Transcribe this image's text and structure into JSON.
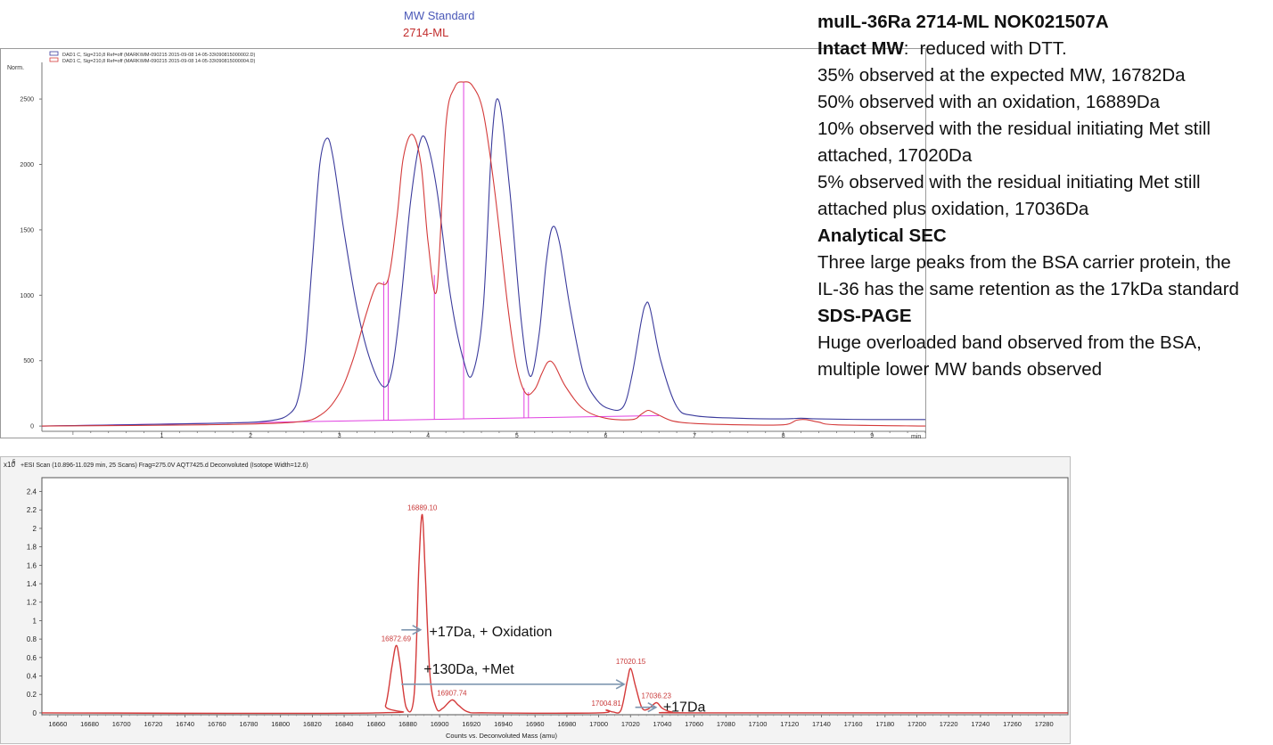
{
  "legend_top": {
    "blue_label": "MW Standard",
    "red_label": "2714-ML"
  },
  "notes": {
    "title": "muIL-36Ra 2714-ML NOK021507A",
    "intact_head": "Intact MW",
    "intact_sep": ":",
    "intact_tail": "reduced with DTT.",
    "lines1": [
      "35% observed at the expected MW, 16782Da",
      "50% observed with an oxidation, 16889Da",
      "10% observed with the residual initiating Met still attached, 17020Da",
      "5% observed with the residual initiating Met still attached plus oxidation, 17036Da"
    ],
    "sec_head": "Analytical SEC",
    "sec_text": "Three large peaks from the BSA carrier protein, the IL-36 has the same retention as the 17kDa standard",
    "sds_head": "SDS-PAGE",
    "sds_text": "Huge overloaded band observed from the BSA, multiple lower MW bands observed"
  },
  "chart_data": [
    {
      "type": "line",
      "ylabel": "Norm.",
      "xlabel": "min",
      "xlim": [
        -0.35,
        9.6
      ],
      "ylim": [
        -40,
        2780
      ],
      "yticks": [
        0,
        500,
        1000,
        1500,
        2000,
        2500
      ],
      "xticks": [
        1,
        2,
        3,
        4,
        5,
        6,
        7,
        8,
        9
      ],
      "header_lines": [
        "DAD1 C, Sig=210,8 Ref=off (MARK\\MM-090215 2015-09-08 14-05-33\\090815000002.D)",
        "DAD1 C, Sig=210,8 Ref=off (MARK\\MM-090215 2015-09-08 14-05-33\\090815000004.D)"
      ],
      "series": [
        {
          "name": "MW Standard",
          "color": "#3b3b9c",
          "x": [
            -0.35,
            1.5,
            2.2,
            2.45,
            2.55,
            2.62,
            2.7,
            2.78,
            2.86,
            2.93,
            3.05,
            3.2,
            3.35,
            3.5,
            3.6,
            3.7,
            3.8,
            3.9,
            3.98,
            4.1,
            4.25,
            4.4,
            4.5,
            4.62,
            4.72,
            4.8,
            4.92,
            5.05,
            5.15,
            5.25,
            5.33,
            5.4,
            5.48,
            5.6,
            5.75,
            5.9,
            6.05,
            6.2,
            6.3,
            6.4,
            6.45,
            6.5,
            6.62,
            6.8,
            7.0,
            7.5,
            8.0,
            8.2,
            8.4,
            9.0,
            9.6
          ],
          "y": [
            0,
            20,
            40,
            100,
            250,
            600,
            1300,
            2000,
            2200,
            2050,
            1500,
            900,
            500,
            300,
            450,
            1000,
            1700,
            2150,
            2180,
            1800,
            1000,
            500,
            400,
            900,
            2200,
            2480,
            1800,
            800,
            380,
            700,
            1250,
            1520,
            1400,
            900,
            400,
            200,
            130,
            150,
            400,
            800,
            930,
            900,
            500,
            150,
            80,
            60,
            55,
            60,
            55,
            50,
            50
          ]
        },
        {
          "name": "2714-ML",
          "color": "#d43a3a",
          "x": [
            -0.35,
            1.5,
            2.5,
            2.8,
            3.0,
            3.15,
            3.3,
            3.42,
            3.55,
            3.65,
            3.72,
            3.82,
            3.92,
            4.0,
            4.1,
            4.2,
            4.3,
            4.4,
            4.5,
            4.62,
            4.75,
            4.9,
            5.0,
            5.1,
            5.2,
            5.28,
            5.35,
            5.42,
            5.55,
            5.75,
            6.0,
            6.3,
            6.4,
            6.48,
            6.58,
            6.75,
            7.0,
            7.5,
            8.0,
            8.15,
            8.25,
            8.4,
            8.6,
            9.6
          ],
          "y": [
            0,
            10,
            30,
            90,
            250,
            500,
            850,
            1080,
            1120,
            1600,
            2050,
            2230,
            2000,
            1400,
            1050,
            2300,
            2590,
            2630,
            2600,
            2400,
            1800,
            900,
            450,
            250,
            280,
            400,
            490,
            470,
            300,
            130,
            60,
            50,
            90,
            120,
            90,
            40,
            20,
            10,
            10,
            45,
            50,
            30,
            10,
            0
          ]
        }
      ],
      "markers": {
        "color": "#e040e0",
        "drops": [
          3.5,
          3.55,
          4.07,
          4.4,
          5.08,
          5.13
        ],
        "baseline": [
          [
            -0.35,
            0
          ],
          [
            6.6,
            80
          ]
        ]
      }
    },
    {
      "type": "line",
      "title": "+ESI Scan (10.896-11.029 min, 25 Scans) Frag=275.0V AQT7425.d  Deconvoluted (Isotope Width=12.6)",
      "xlabel": "Counts vs. Deconvoluted Mass (amu)",
      "yscale_label": "x10",
      "yscale_exp": "5",
      "xlim": [
        16650,
        17295
      ],
      "ylim": [
        -0.02,
        2.55
      ],
      "yticks": [
        0,
        0.2,
        0.4,
        0.6,
        0.8,
        1,
        1.2,
        1.4,
        1.6,
        1.8,
        2,
        2.2,
        2.4
      ],
      "xticks": [
        16660,
        16680,
        16700,
        16720,
        16740,
        16760,
        16780,
        16800,
        16820,
        16840,
        16860,
        16880,
        16900,
        16920,
        16940,
        16960,
        16980,
        17000,
        17020,
        17040,
        17060,
        17080,
        17100,
        17120,
        17140,
        17160,
        17180,
        17200,
        17220,
        17240,
        17260,
        17280
      ],
      "series": [
        {
          "name": "",
          "color": "#d43a3a",
          "x": [
            16650,
            16860,
            16866,
            16870,
            16872.69,
            16875,
            16879,
            16884,
            16887,
            16889.1,
            16891,
            16894,
            16898,
            16902,
            16907.74,
            16912,
            16918,
            16930,
            17000,
            17004.81,
            17009,
            17014,
            17018,
            17020.15,
            17023,
            17027,
            17031,
            17036.23,
            17040,
            17046,
            17060,
            17295
          ],
          "y": [
            0,
            0,
            0.08,
            0.5,
            0.73,
            0.55,
            0.06,
            0.2,
            1.6,
            2.15,
            1.5,
            0.4,
            0.05,
            0.05,
            0.14,
            0.08,
            0.01,
            0,
            0,
            0.03,
            0.01,
            0.03,
            0.35,
            0.48,
            0.3,
            0.06,
            0.04,
            0.11,
            0.05,
            0.01,
            0,
            0
          ]
        }
      ],
      "peak_labels": [
        {
          "x": 16872.69,
          "y": 0.73,
          "text": "16872.69"
        },
        {
          "x": 16889.1,
          "y": 2.15,
          "text": "16889.10"
        },
        {
          "x": 16907.74,
          "y": 0.14,
          "text": "16907.74"
        },
        {
          "x": 17004.81,
          "y": 0.03,
          "text": "17004.81"
        },
        {
          "x": 17020.15,
          "y": 0.48,
          "text": "17020.15"
        },
        {
          "x": 17036.23,
          "y": 0.11,
          "text": "17036.23"
        }
      ],
      "annotations": [
        {
          "text": "+17Da, + Oxidation",
          "from": [
            16876,
            0.9
          ],
          "to": [
            16888,
            0.9
          ]
        },
        {
          "text": "+130Da, +Met",
          "from": [
            16876,
            0.31
          ],
          "to": [
            17016,
            0.31
          ]
        },
        {
          "text": "+17Da",
          "from": [
            17023,
            0.06
          ],
          "to": [
            17036,
            0.06
          ]
        }
      ]
    }
  ]
}
